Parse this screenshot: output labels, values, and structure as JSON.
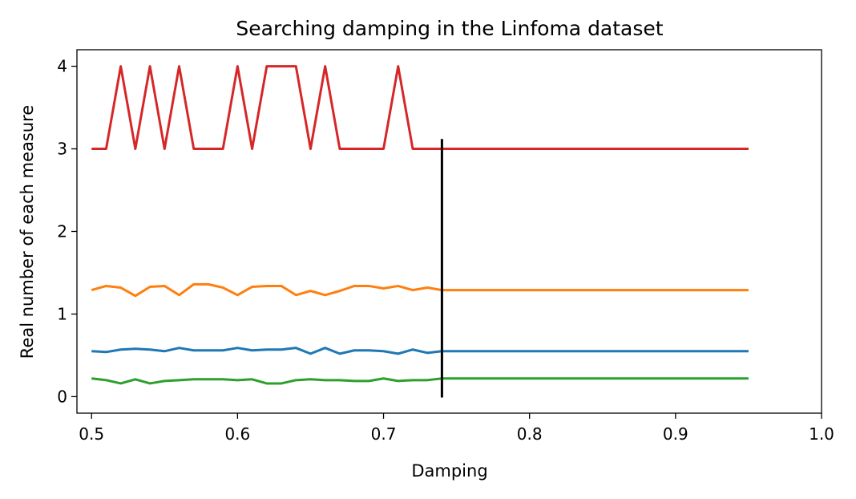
{
  "chart_data": {
    "type": "line",
    "title": "Searching damping in the Linfoma dataset",
    "xlabel": "Damping",
    "ylabel": "Real number of each measure",
    "xlim": [
      0.49,
      1.0
    ],
    "ylim": [
      -0.2,
      4.2
    ],
    "xticks": [
      0.5,
      0.6,
      0.7,
      0.8,
      0.9,
      1.0
    ],
    "xtick_labels": [
      "0.5",
      "0.6",
      "0.7",
      "0.8",
      "0.9",
      "1.0"
    ],
    "yticks": [
      0,
      1,
      2,
      3,
      4
    ],
    "ytick_labels": [
      "0",
      "1",
      "2",
      "3",
      "4"
    ],
    "grid": false,
    "x": [
      0.5,
      0.51,
      0.52,
      0.53,
      0.54,
      0.55,
      0.56,
      0.57,
      0.58,
      0.59,
      0.6,
      0.61,
      0.62,
      0.63,
      0.64,
      0.65,
      0.66,
      0.67,
      0.68,
      0.69,
      0.7,
      0.71,
      0.72,
      0.73,
      0.74,
      0.75,
      0.76,
      0.77,
      0.78,
      0.79,
      0.8,
      0.81,
      0.82,
      0.83,
      0.84,
      0.85,
      0.86,
      0.87,
      0.88,
      0.89,
      0.9,
      0.91,
      0.92,
      0.93,
      0.94,
      0.95
    ],
    "series": [
      {
        "color": "#1f77b4",
        "values": [
          0.55,
          0.54,
          0.57,
          0.58,
          0.57,
          0.55,
          0.59,
          0.56,
          0.56,
          0.56,
          0.59,
          0.56,
          0.57,
          0.57,
          0.59,
          0.52,
          0.59,
          0.52,
          0.56,
          0.56,
          0.55,
          0.52,
          0.57,
          0.53,
          0.55,
          0.55,
          0.55,
          0.55,
          0.55,
          0.55,
          0.55,
          0.55,
          0.55,
          0.55,
          0.55,
          0.55,
          0.55,
          0.55,
          0.55,
          0.55,
          0.55,
          0.55,
          0.55,
          0.55,
          0.55,
          0.55
        ]
      },
      {
        "color": "#ff7f0e",
        "values": [
          1.29,
          1.34,
          1.32,
          1.22,
          1.33,
          1.34,
          1.23,
          1.36,
          1.36,
          1.32,
          1.23,
          1.33,
          1.34,
          1.34,
          1.23,
          1.28,
          1.23,
          1.28,
          1.34,
          1.34,
          1.31,
          1.34,
          1.29,
          1.32,
          1.29,
          1.29,
          1.29,
          1.29,
          1.29,
          1.29,
          1.29,
          1.29,
          1.29,
          1.29,
          1.29,
          1.29,
          1.29,
          1.29,
          1.29,
          1.29,
          1.29,
          1.29,
          1.29,
          1.29,
          1.29,
          1.29
        ]
      },
      {
        "color": "#2ca02c",
        "values": [
          0.22,
          0.2,
          0.16,
          0.21,
          0.16,
          0.19,
          0.2,
          0.21,
          0.21,
          0.21,
          0.2,
          0.21,
          0.16,
          0.16,
          0.2,
          0.21,
          0.2,
          0.2,
          0.19,
          0.19,
          0.22,
          0.19,
          0.2,
          0.2,
          0.22,
          0.22,
          0.22,
          0.22,
          0.22,
          0.22,
          0.22,
          0.22,
          0.22,
          0.22,
          0.22,
          0.22,
          0.22,
          0.22,
          0.22,
          0.22,
          0.22,
          0.22,
          0.22,
          0.22,
          0.22,
          0.22
        ]
      },
      {
        "color": "#d62728",
        "values": [
          3,
          3,
          4,
          3,
          4,
          3,
          4,
          3,
          3,
          3,
          4,
          3,
          4,
          4,
          4,
          3,
          4,
          3,
          3,
          3,
          3,
          4,
          3,
          3,
          3,
          3,
          3,
          3,
          3,
          3,
          3,
          3,
          3,
          3,
          3,
          3,
          3,
          3,
          3,
          3,
          3,
          3,
          3,
          3,
          3,
          3
        ]
      }
    ],
    "vline": {
      "x": 0.74,
      "ymin": -0.01,
      "ymax": 3.12,
      "color": "#000000"
    }
  }
}
